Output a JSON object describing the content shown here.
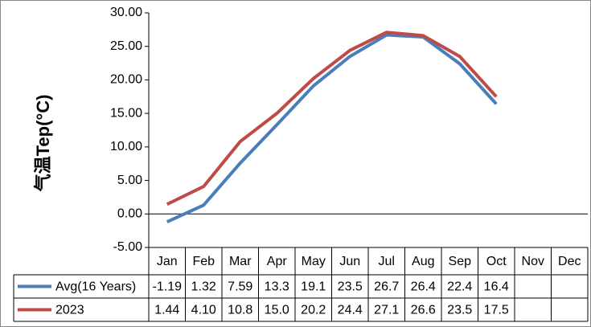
{
  "chart_data": {
    "type": "line",
    "y_label": "气温Tep(°C)",
    "categories": [
      "Jan",
      "Feb",
      "Mar",
      "Apr",
      "May",
      "Jun",
      "Jul",
      "Aug",
      "Sep",
      "Oct",
      "Nov",
      "Dec"
    ],
    "series": [
      {
        "name": "Avg(16 Years)",
        "color": "#4a7ebb",
        "values": [
          -1.19,
          1.32,
          7.59,
          13.3,
          19.1,
          23.5,
          26.7,
          26.4,
          22.4,
          16.4,
          null,
          null
        ],
        "value_labels": [
          "-1.19",
          "1.32",
          "7.59",
          "13.3",
          "19.1",
          "23.5",
          "26.7",
          "26.4",
          "22.4",
          "16.4",
          null,
          null
        ]
      },
      {
        "name": "2023",
        "color": "#be4b48",
        "values": [
          1.44,
          4.1,
          10.8,
          15.0,
          20.2,
          24.4,
          27.1,
          26.6,
          23.5,
          17.5,
          null,
          null
        ],
        "value_labels": [
          "1.44",
          "4.10",
          "10.8",
          "15.0",
          "20.2",
          "24.4",
          "27.1",
          "26.6",
          "23.5",
          "17.5",
          null,
          null
        ]
      }
    ],
    "ylim": [
      -5,
      30
    ],
    "yticks": [
      {
        "value": -5,
        "label": "-5.00"
      },
      {
        "value": 0,
        "label": "0.00"
      },
      {
        "value": 5,
        "label": "5.00"
      },
      {
        "value": 10,
        "label": "10.00"
      },
      {
        "value": 15,
        "label": "15.00"
      },
      {
        "value": 20,
        "label": "20.00"
      },
      {
        "value": 25,
        "label": "25.00"
      },
      {
        "value": 30,
        "label": "30.00"
      }
    ]
  }
}
